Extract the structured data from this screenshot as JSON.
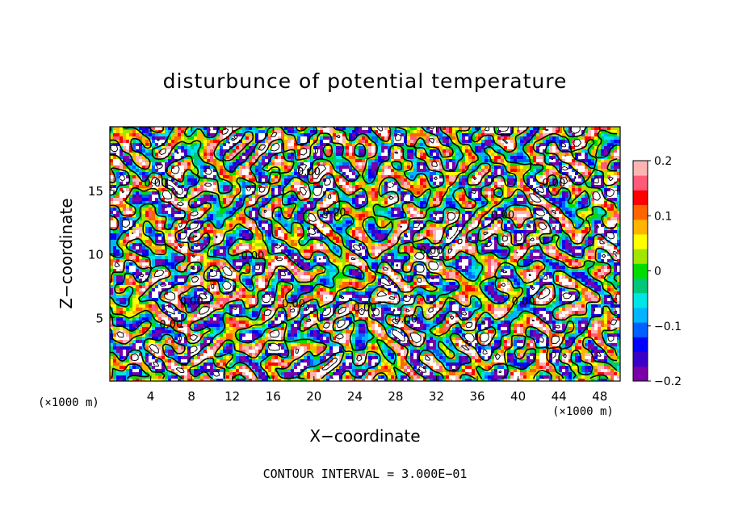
{
  "chart_data": {
    "type": "heatmap",
    "title": "disturbunce of potential temperature",
    "xlabel": "X−coordinate",
    "ylabel": "Z−coordinate",
    "x_unit_label": "(×1000 m)",
    "x_unit_label_right": "(×1000 m)",
    "x_ticks": [
      "4",
      "8",
      "12",
      "16",
      "20",
      "24",
      "28",
      "32",
      "36",
      "40",
      "44",
      "48"
    ],
    "x_tick_values": [
      4,
      8,
      12,
      16,
      20,
      24,
      28,
      32,
      36,
      40,
      44,
      48
    ],
    "y_ticks": [
      "5",
      "10",
      "15"
    ],
    "y_tick_values": [
      5,
      10,
      15
    ],
    "xlim": [
      0,
      50
    ],
    "ylim": [
      0,
      20
    ],
    "colorbar": {
      "min": -0.2,
      "max": 0.2,
      "ticks": [
        "0.2",
        "0.1",
        "0",
        "−0.1",
        "−0.2"
      ],
      "tick_values": [
        0.2,
        0.1,
        0,
        -0.1,
        -0.2
      ],
      "colors": [
        "#7a00a8",
        "#3a00c8",
        "#0000ff",
        "#0060ff",
        "#00b4ff",
        "#00e6e6",
        "#00c878",
        "#00dc00",
        "#a0e600",
        "#ffff00",
        "#ffb400",
        "#ff6400",
        "#ff0000",
        "#ff5a78",
        "#ffb4b4"
      ]
    },
    "contour_labels": [
      "0.00",
      "0.00",
      "0.00",
      "0.00",
      "0.00",
      "0.00",
      "0.00",
      "0.00",
      "0.00",
      "0.00",
      "0.00",
      "0.00",
      "0.00"
    ],
    "contour_interval_text": "CONTOUR INTERVAL = 3.000E−01"
  }
}
